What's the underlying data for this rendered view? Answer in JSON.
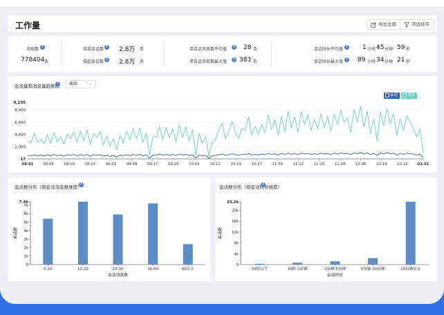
{
  "header": {
    "title": "工作量",
    "export_label": "导出全部",
    "filter_label": "筛选排序"
  },
  "stats": {
    "msg_count_label": "消息数",
    "msg_count_value": "778404",
    "msg_count_unit": "条",
    "ended_label": "结束会话数",
    "ended_value": "2.8万",
    "ended_unit": "条",
    "received_label": "接起会话数",
    "received_value": "2.8万",
    "received_unit": "条",
    "avg_msgs_label": "单会话消息数平均值",
    "avg_msgs_value": "28",
    "avg_msgs_unit": "条",
    "max_msgs_label": "单会话消息数最大值",
    "max_msgs_value": "383",
    "max_msgs_unit": "条",
    "avg_dur_label": "会话时长平均值",
    "avg_dur_h": "1",
    "avg_dur_m": "45",
    "avg_dur_s": "59",
    "max_dur_label": "会话时长最大值",
    "max_dur_h": "89",
    "max_dur_m": "34",
    "max_dur_s": "21",
    "unit_h": "小时",
    "unit_m": "分钟",
    "unit_s": "秒"
  },
  "trend": {
    "title": "会话量和消息量趋势图",
    "select_value": "曲线",
    "legend_session": "会话",
    "legend_message": "消息"
  },
  "dist1": {
    "title": "会话数分布（按会话消息数维度）"
  },
  "dist2": {
    "title": "会话数分布（按会话时长维度）"
  },
  "colors": {
    "accent": "#2f6fe8",
    "message_line": "#5fd3c0",
    "session_line": "#2c5fa8",
    "bar": "#5b8ec7"
  },
  "chart_data": [
    {
      "type": "line",
      "title": "会话量和消息量趋势图",
      "x_tick_labels": [
        "08-01",
        "08-08",
        "08-16",
        "08-24",
        "09-01",
        "09-09",
        "09-17",
        "09-25",
        "10-03",
        "10-11",
        "10-19",
        "10-27",
        "11-04",
        "11-12",
        "11-20",
        "11-28",
        "12-06",
        "12-14",
        "12-22",
        "01-01"
      ],
      "y_tick_labels": [
        "9,235",
        "8,000",
        "6,000",
        "4,000",
        "2,000",
        "17"
      ],
      "ylim": [
        17,
        9235
      ],
      "series": [
        {
          "name": "消息",
          "values": [
            3000,
            2600,
            4200,
            2700,
            3200,
            2500,
            3900,
            2600,
            4300,
            2800,
            3600,
            2500,
            4000,
            3300,
            4400,
            2700,
            4500,
            3000,
            4700,
            2400,
            4100,
            3500,
            4500,
            2300,
            3700,
            2100,
            3300,
            1500,
            3800,
            2600,
            4500,
            3100,
            4900,
            3300,
            5000,
            2700,
            4300,
            600,
            3700,
            3500,
            5300,
            3200,
            5100,
            3400,
            4900,
            2800,
            5500,
            3500,
            5200,
            2900,
            4800,
            600,
            4200,
            2500,
            3600,
            400,
            2800,
            3200,
            4800,
            5800,
            3300,
            4500,
            6100,
            4400,
            3300,
            5000,
            4700,
            6800,
            3900,
            5300,
            4000,
            5600,
            4300,
            7200,
            4800,
            6400,
            3900,
            6900,
            4400,
            7800,
            5000,
            6900,
            4300,
            7700,
            5600,
            7200,
            4700,
            6400,
            4900,
            7400,
            5100,
            6900,
            4500,
            7300,
            5600,
            8000,
            6000,
            6600,
            4300,
            8000,
            6000,
            8600,
            5200,
            7800,
            4100,
            6500,
            3000,
            7700,
            5400,
            8200,
            5700,
            7400,
            3900,
            6600,
            4600,
            7000,
            6000,
            5000,
            3600,
            4900,
            900
          ]
        },
        {
          "name": "会话",
          "values": [
            600,
            500,
            700,
            500,
            650,
            450,
            700,
            500,
            750,
            550,
            650,
            450,
            700,
            600,
            750,
            500,
            700,
            550,
            750,
            450,
            700,
            600,
            700,
            450,
            650,
            400,
            600,
            300,
            650,
            500,
            700,
            550,
            750,
            600,
            750,
            500,
            700,
            150,
            650,
            600,
            800,
            600,
            750,
            600,
            750,
            550,
            800,
            650,
            750,
            550,
            700,
            150,
            650,
            500,
            600,
            100,
            550,
            600,
            700,
            800,
            600,
            700,
            850,
            700,
            600,
            750,
            700,
            900,
            650,
            750,
            650,
            800,
            700,
            900,
            750,
            850,
            650,
            900,
            700,
            950,
            750,
            900,
            700,
            950,
            800,
            900,
            750,
            850,
            750,
            950,
            800,
            900,
            700,
            950,
            800,
            1000,
            850,
            900,
            700,
            1000,
            850,
            1050,
            800,
            1000,
            700,
            900,
            600,
            1000,
            800,
            1050,
            850,
            950,
            650,
            900,
            750,
            950,
            850,
            800,
            650,
            800,
            250
          ]
        }
      ]
    },
    {
      "type": "bar",
      "title": "会话数分布（按会话消息数维度）",
      "categories": [
        "0-10",
        "10-20",
        "20-30",
        "30-60",
        "60以上"
      ],
      "values": [
        5400,
        7400,
        5900,
        7200,
        2400
      ],
      "xlabel": "会话消息数",
      "ylabel": "会话数",
      "y_tick_labels": [
        "7.4k",
        "7k",
        "6k",
        "5k",
        "4k",
        "3k",
        "2k",
        "1k",
        "0"
      ],
      "ylim": [
        0,
        7400
      ]
    },
    {
      "type": "bar",
      "title": "会话数分布（按会话时长维度）",
      "categories": [
        "30秒以下",
        "30秒-2分钟",
        "2分钟-5分钟",
        "5分钟-10分钟",
        "10分钟以上"
      ],
      "values": [
        300,
        700,
        1200,
        2400,
        23200
      ],
      "xlabel": "会话时长",
      "ylabel": "会话数",
      "y_tick_labels": [
        "23.2k",
        "20k",
        "16k",
        "12k",
        "8k",
        "4k",
        "0"
      ],
      "ylim": [
        0,
        23200
      ]
    }
  ]
}
